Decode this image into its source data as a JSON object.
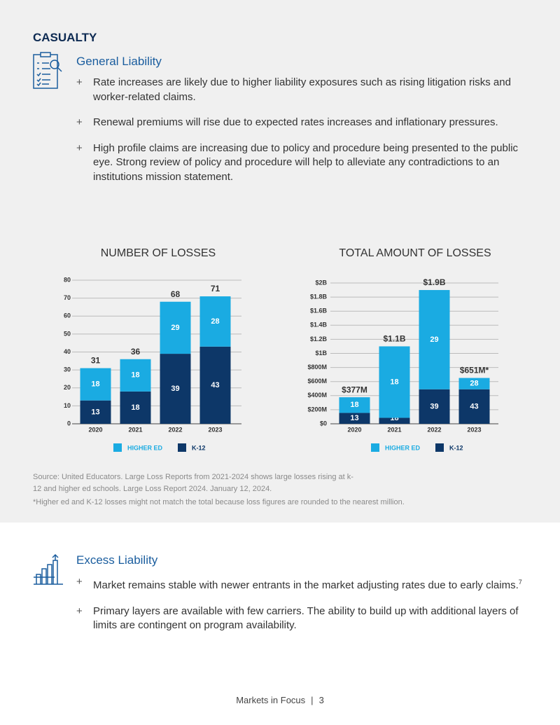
{
  "section_title": "CASUALTY",
  "general_liability": {
    "heading": "General Liability",
    "bullets": [
      "Rate increases are likely due to higher liability exposures such as rising litigation risks and worker-related claims.",
      "Renewal premiums will rise due to expected rates increases and inflationary pressures.",
      "High profile claims are increasing due to policy and procedure being presented to the public eye. Strong review of policy and procedure will help to alleviate any contradictions to an institutions mission statement."
    ]
  },
  "chart_data": [
    {
      "type": "stacked_bar",
      "title": "NUMBER OF LOSSES",
      "categories": [
        "2020",
        "2021",
        "2022",
        "2023"
      ],
      "series": [
        {
          "name": "HIGHER ED",
          "color": "#1aabe2",
          "values": [
            18,
            18,
            29,
            28
          ]
        },
        {
          "name": "K-12",
          "color": "#0d3768",
          "values": [
            13,
            18,
            39,
            43
          ]
        }
      ],
      "totals": [
        31,
        36,
        68,
        71
      ],
      "ylim": [
        0,
        80
      ],
      "yticks": [
        0,
        10,
        20,
        30,
        40,
        50,
        60,
        70,
        80
      ],
      "grid": true
    },
    {
      "type": "stacked_bar",
      "title": "TOTAL AMOUNT OF LOSSES",
      "categories": [
        "2020",
        "2021",
        "2022",
        "2023"
      ],
      "series": [
        {
          "name": "HIGHER ED",
          "color": "#1aabe2",
          "values": [
            222000000,
            1015000000,
            1410000000,
            161000000
          ],
          "counts": [
            18,
            18,
            29,
            28
          ]
        },
        {
          "name": "K-12",
          "color": "#0d3768",
          "values": [
            155000000,
            85000000,
            490000000,
            490000000
          ],
          "counts": [
            13,
            18,
            39,
            43
          ]
        }
      ],
      "totals": [
        377000000,
        1100000000,
        1900000000,
        651000000
      ],
      "total_labels": [
        "$377M",
        "$1.1B",
        "$1.9B",
        "$651M*"
      ],
      "ylim": [
        0,
        2000000000
      ],
      "yticks": [
        {
          "value": 0,
          "label": "$0"
        },
        {
          "value": 200000000,
          "label": "$200M"
        },
        {
          "value": 400000000,
          "label": "$400M"
        },
        {
          "value": 600000000,
          "label": "$600M"
        },
        {
          "value": 800000000,
          "label": "$800M"
        },
        {
          "value": 1000000000,
          "label": "$1B"
        },
        {
          "value": 1200000000,
          "label": "$1.2B"
        },
        {
          "value": 1400000000,
          "label": "$1.4B"
        },
        {
          "value": 1600000000,
          "label": "$1.6B"
        },
        {
          "value": 1800000000,
          "label": "$1.8B"
        },
        {
          "value": 2000000000,
          "label": "$2B"
        }
      ],
      "grid": true
    }
  ],
  "source": [
    "Source: United Educators. Large Loss Reports from 2021-2024 shows large losses rising at k-12 and higher ed schools.  Large Loss Report 2024. January 12, 2024.",
    "*Higher ed and K-12 losses might not match the total because loss figures are rounded to the nearest million."
  ],
  "excess_liability": {
    "heading": "Excess Liability",
    "bullets": [
      {
        "text": "Market remains stable with newer entrants in the market adjusting rates due to early claims.",
        "footnote_ref": "7"
      },
      {
        "text": "Primary layers are available with few carriers. The ability to build up with additional layers of limits are contingent on program availability."
      }
    ]
  },
  "footer": {
    "title": "Markets in Focus",
    "page": "3"
  }
}
